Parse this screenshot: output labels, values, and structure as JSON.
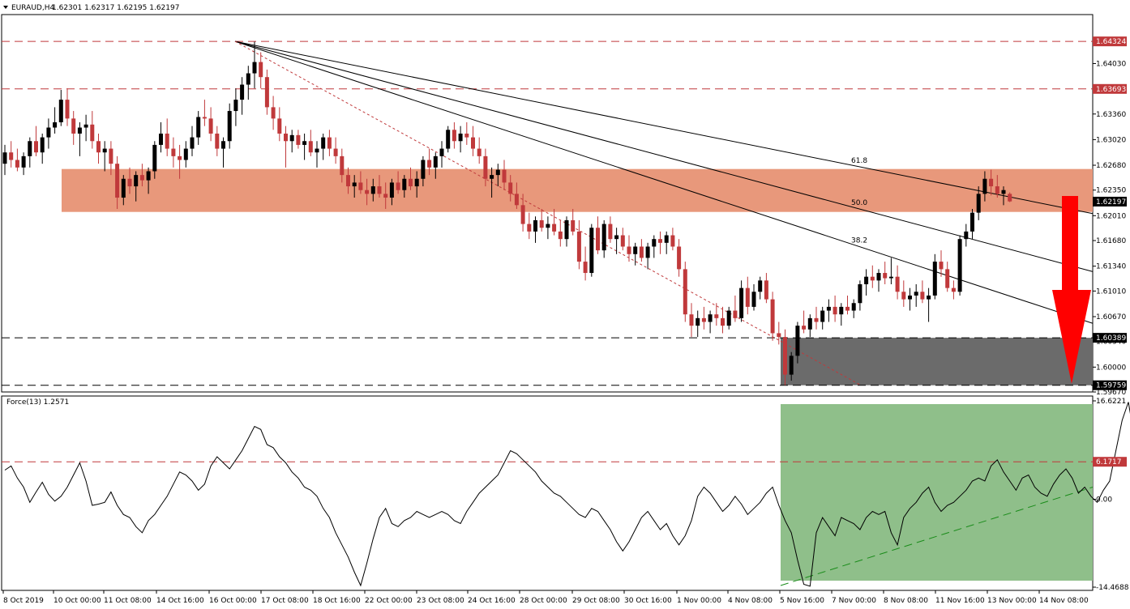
{
  "header": {
    "symbol": "EURAUD,H4",
    "ohlc": "1.62301 1.62317 1.62195 1.62197"
  },
  "indicator": {
    "label": "Force(13) 1.2571"
  },
  "colors": {
    "bull": "#000000",
    "bear": "#c0393b",
    "zone": "#e8987b",
    "grey_zone": "#6b6b6b",
    "green_zone": "#8fbf8a",
    "arrow": "#ff0000",
    "hline": "#c0393b"
  },
  "chart_data": [
    {
      "type": "candlestick",
      "title": "",
      "price_axis": {
        "ylim": [
          1.5967,
          1.6468
        ],
        "ticks": [
          "1.64030",
          "1.63360",
          "1.63020",
          "1.62680",
          "1.62350",
          "1.62010",
          "1.61680",
          "1.61340",
          "1.61010",
          "1.60670",
          "1.60340",
          "1.60000",
          "1.59670"
        ]
      },
      "x_labels": [
        "8 Oct 2019",
        "10 Oct 00:00",
        "11 Oct 08:00",
        "14 Oct 16:00",
        "16 Oct 00:00",
        "17 Oct 08:00",
        "18 Oct 16:00",
        "22 Oct 00:00",
        "23 Oct 08:00",
        "24 Oct 16:00",
        "28 Oct 00:00",
        "29 Oct 08:00",
        "30 Oct 16:00",
        "1 Nov 00:00",
        "4 Nov 08:00",
        "5 Nov 16:00",
        "7 Nov 00:00",
        "8 Nov 08:00",
        "11 Nov 16:00",
        "13 Nov 00:00",
        "14 Nov 08:00"
      ],
      "horizontal_levels": [
        {
          "value": 1.64324,
          "label": "1.64324",
          "style": "red-dash"
        },
        {
          "value": 1.63693,
          "label": "1.63693",
          "style": "red-dash"
        },
        {
          "value": 1.60389,
          "label": "1.60389",
          "style": "black-dash"
        },
        {
          "value": 1.59759,
          "label": "1.59759",
          "style": "black-dash"
        }
      ],
      "current_price": "1.62197",
      "resistance_zone": [
        1.6206,
        1.6263
      ],
      "support_zone": [
        1.59759,
        1.60389
      ],
      "fib_fan": {
        "origin_price": 1.64324,
        "levels": [
          {
            "label": "61.8",
            "at_price": 1.6266
          },
          {
            "label": "50.0",
            "at_price": 1.621
          },
          {
            "label": "38.2",
            "at_price": 1.616
          }
        ]
      },
      "trendline": {
        "from": 1.64324,
        "to": 1.59759,
        "style": "red-dot"
      },
      "candles": [
        [
          1.627,
          1.6295,
          1.6255,
          1.6285
        ],
        [
          1.6285,
          1.63,
          1.6265,
          1.6275
        ],
        [
          1.6275,
          1.629,
          1.626,
          1.6265
        ],
        [
          1.6265,
          1.6285,
          1.6255,
          1.628
        ],
        [
          1.628,
          1.6305,
          1.6265,
          1.63
        ],
        [
          1.63,
          1.632,
          1.628,
          1.6285
        ],
        [
          1.6285,
          1.631,
          1.627,
          1.6305
        ],
        [
          1.6305,
          1.633,
          1.629,
          1.6318
        ],
        [
          1.6318,
          1.6345,
          1.631,
          1.6325
        ],
        [
          1.6325,
          1.6368,
          1.632,
          1.6355
        ],
        [
          1.6355,
          1.637,
          1.632,
          1.633
        ],
        [
          1.633,
          1.634,
          1.6295,
          1.631
        ],
        [
          1.631,
          1.6325,
          1.628,
          1.6318
        ],
        [
          1.6318,
          1.6335,
          1.63,
          1.6322
        ],
        [
          1.6322,
          1.634,
          1.629,
          1.63
        ],
        [
          1.63,
          1.631,
          1.627,
          1.6285
        ],
        [
          1.6285,
          1.63,
          1.626,
          1.629
        ],
        [
          1.629,
          1.63,
          1.6255,
          1.627
        ],
        [
          1.627,
          1.628,
          1.621,
          1.6225
        ],
        [
          1.6225,
          1.6255,
          1.6215,
          1.625
        ],
        [
          1.625,
          1.6265,
          1.623,
          1.624
        ],
        [
          1.624,
          1.626,
          1.622,
          1.6255
        ],
        [
          1.6255,
          1.627,
          1.624,
          1.6248
        ],
        [
          1.6248,
          1.6265,
          1.623,
          1.626
        ],
        [
          1.626,
          1.63,
          1.625,
          1.6295
        ],
        [
          1.6295,
          1.6325,
          1.6285,
          1.631
        ],
        [
          1.631,
          1.633,
          1.628,
          1.629
        ],
        [
          1.629,
          1.6305,
          1.6265,
          1.628
        ],
        [
          1.628,
          1.6295,
          1.625,
          1.6275
        ],
        [
          1.6275,
          1.63,
          1.6265,
          1.629
        ],
        [
          1.629,
          1.632,
          1.628,
          1.6305
        ],
        [
          1.6305,
          1.634,
          1.6295,
          1.6332
        ],
        [
          1.6332,
          1.6355,
          1.632,
          1.633
        ],
        [
          1.633,
          1.6345,
          1.63,
          1.631
        ],
        [
          1.631,
          1.632,
          1.628,
          1.629
        ],
        [
          1.629,
          1.6305,
          1.6265,
          1.63
        ],
        [
          1.63,
          1.635,
          1.629,
          1.634
        ],
        [
          1.634,
          1.637,
          1.632,
          1.6355
        ],
        [
          1.6355,
          1.6385,
          1.6335,
          1.6375
        ],
        [
          1.6375,
          1.64,
          1.6355,
          1.639
        ],
        [
          1.639,
          1.6432,
          1.637,
          1.6405
        ],
        [
          1.6405,
          1.6418,
          1.637,
          1.6385
        ],
        [
          1.6385,
          1.6395,
          1.6335,
          1.6345
        ],
        [
          1.6345,
          1.636,
          1.6315,
          1.633
        ],
        [
          1.633,
          1.6345,
          1.63,
          1.631
        ],
        [
          1.631,
          1.632,
          1.6265,
          1.63
        ],
        [
          1.63,
          1.6315,
          1.6285,
          1.6308
        ],
        [
          1.6308,
          1.6315,
          1.629,
          1.6295
        ],
        [
          1.6295,
          1.631,
          1.6275,
          1.63
        ],
        [
          1.63,
          1.6315,
          1.628,
          1.6285
        ],
        [
          1.6285,
          1.63,
          1.6265,
          1.629
        ],
        [
          1.629,
          1.631,
          1.6275,
          1.6305
        ],
        [
          1.6305,
          1.6315,
          1.628,
          1.629
        ],
        [
          1.629,
          1.6305,
          1.627,
          1.628
        ],
        [
          1.628,
          1.629,
          1.6245,
          1.6255
        ],
        [
          1.6255,
          1.6265,
          1.623,
          1.624
        ],
        [
          1.624,
          1.6255,
          1.6225,
          1.6245
        ],
        [
          1.6245,
          1.626,
          1.623,
          1.6235
        ],
        [
          1.6235,
          1.625,
          1.6215,
          1.623
        ],
        [
          1.623,
          1.625,
          1.622,
          1.624
        ],
        [
          1.624,
          1.6255,
          1.6225,
          1.623
        ],
        [
          1.623,
          1.6245,
          1.621,
          1.6225
        ],
        [
          1.6225,
          1.625,
          1.6215,
          1.6245
        ],
        [
          1.6245,
          1.626,
          1.623,
          1.6235
        ],
        [
          1.6235,
          1.6255,
          1.6225,
          1.625
        ],
        [
          1.625,
          1.6265,
          1.6235,
          1.624
        ],
        [
          1.624,
          1.626,
          1.6225,
          1.625
        ],
        [
          1.625,
          1.628,
          1.624,
          1.6275
        ],
        [
          1.6275,
          1.629,
          1.6255,
          1.6265
        ],
        [
          1.6265,
          1.6285,
          1.625,
          1.628
        ],
        [
          1.628,
          1.63,
          1.6265,
          1.629
        ],
        [
          1.629,
          1.632,
          1.6285,
          1.6315
        ],
        [
          1.6315,
          1.6325,
          1.629,
          1.63
        ],
        [
          1.63,
          1.632,
          1.6285,
          1.631
        ],
        [
          1.631,
          1.6325,
          1.6295,
          1.6305
        ],
        [
          1.6305,
          1.632,
          1.628,
          1.629
        ],
        [
          1.629,
          1.6305,
          1.627,
          1.628
        ],
        [
          1.628,
          1.629,
          1.624,
          1.625
        ],
        [
          1.625,
          1.6265,
          1.6225,
          1.6255
        ],
        [
          1.6255,
          1.627,
          1.624,
          1.6262
        ],
        [
          1.6262,
          1.6275,
          1.6235,
          1.6245
        ],
        [
          1.6245,
          1.6255,
          1.622,
          1.623
        ],
        [
          1.623,
          1.6245,
          1.621,
          1.6215
        ],
        [
          1.6215,
          1.623,
          1.618,
          1.619
        ],
        [
          1.619,
          1.6205,
          1.617,
          1.618
        ],
        [
          1.618,
          1.62,
          1.6165,
          1.6195
        ],
        [
          1.6195,
          1.621,
          1.618,
          1.6185
        ],
        [
          1.6185,
          1.62,
          1.617,
          1.619
        ],
        [
          1.619,
          1.621,
          1.6175,
          1.618
        ],
        [
          1.618,
          1.6195,
          1.616,
          1.617
        ],
        [
          1.617,
          1.62,
          1.616,
          1.6195
        ],
        [
          1.6195,
          1.621,
          1.6175,
          1.618
        ],
        [
          1.618,
          1.6195,
          1.613,
          1.614
        ],
        [
          1.614,
          1.616,
          1.6115,
          1.6125
        ],
        [
          1.6125,
          1.619,
          1.612,
          1.6185
        ],
        [
          1.6185,
          1.62,
          1.615,
          1.6155
        ],
        [
          1.6155,
          1.6195,
          1.6145,
          1.619
        ],
        [
          1.619,
          1.62,
          1.6165,
          1.617
        ],
        [
          1.617,
          1.6185,
          1.615,
          1.6175
        ],
        [
          1.6175,
          1.6185,
          1.6155,
          1.616
        ],
        [
          1.616,
          1.6175,
          1.614,
          1.615
        ],
        [
          1.615,
          1.6165,
          1.6135,
          1.616
        ],
        [
          1.616,
          1.617,
          1.614,
          1.6145
        ],
        [
          1.6145,
          1.6165,
          1.613,
          1.616
        ],
        [
          1.616,
          1.6175,
          1.6145,
          1.617
        ],
        [
          1.617,
          1.618,
          1.615,
          1.6165
        ],
        [
          1.6165,
          1.618,
          1.615,
          1.6175
        ],
        [
          1.6175,
          1.6185,
          1.6155,
          1.616
        ],
        [
          1.616,
          1.617,
          1.612,
          1.613
        ],
        [
          1.613,
          1.614,
          1.606,
          1.607
        ],
        [
          1.607,
          1.6085,
          1.604,
          1.6055
        ],
        [
          1.6055,
          1.6075,
          1.604,
          1.6065
        ],
        [
          1.6065,
          1.608,
          1.605,
          1.606
        ],
        [
          1.606,
          1.6075,
          1.6045,
          1.607
        ],
        [
          1.607,
          1.6085,
          1.6055,
          1.6065
        ],
        [
          1.6065,
          1.608,
          1.6045,
          1.6055
        ],
        [
          1.6055,
          1.608,
          1.605,
          1.6075
        ],
        [
          1.6075,
          1.6095,
          1.606,
          1.6065
        ],
        [
          1.6065,
          1.6115,
          1.606,
          1.6105
        ],
        [
          1.6105,
          1.612,
          1.607,
          1.608
        ],
        [
          1.608,
          1.611,
          1.6075,
          1.61
        ],
        [
          1.61,
          1.612,
          1.609,
          1.6115
        ],
        [
          1.6115,
          1.6125,
          1.6085,
          1.609
        ],
        [
          1.609,
          1.61,
          1.6035,
          1.6045
        ],
        [
          1.6045,
          1.606,
          1.603,
          1.604
        ],
        [
          1.604,
          1.605,
          1.5976,
          1.599
        ],
        [
          1.599,
          1.602,
          1.5982,
          1.6015
        ],
        [
          1.6015,
          1.606,
          1.6005,
          1.6055
        ],
        [
          1.6055,
          1.6075,
          1.6045,
          1.605
        ],
        [
          1.605,
          1.607,
          1.604,
          1.6065
        ],
        [
          1.6065,
          1.608,
          1.605,
          1.606
        ],
        [
          1.606,
          1.608,
          1.605,
          1.6075
        ],
        [
          1.6075,
          1.609,
          1.606,
          1.608
        ],
        [
          1.608,
          1.6095,
          1.606,
          1.607
        ],
        [
          1.607,
          1.6085,
          1.6055,
          1.608
        ],
        [
          1.608,
          1.6095,
          1.607,
          1.6075
        ],
        [
          1.6075,
          1.609,
          1.6065,
          1.6085
        ],
        [
          1.6085,
          1.6115,
          1.6075,
          1.611
        ],
        [
          1.611,
          1.613,
          1.6095,
          1.612
        ],
        [
          1.612,
          1.6135,
          1.6105,
          1.6115
        ],
        [
          1.6115,
          1.613,
          1.61,
          1.6125
        ],
        [
          1.6125,
          1.614,
          1.611,
          1.6118
        ],
        [
          1.6118,
          1.6145,
          1.611,
          1.612
        ],
        [
          1.612,
          1.6135,
          1.609,
          1.61
        ],
        [
          1.61,
          1.6115,
          1.608,
          1.609
        ],
        [
          1.609,
          1.6105,
          1.6075,
          1.6095
        ],
        [
          1.6095,
          1.611,
          1.608,
          1.61
        ],
        [
          1.61,
          1.6115,
          1.6085,
          1.609
        ],
        [
          1.609,
          1.6105,
          1.606,
          1.6095
        ],
        [
          1.6095,
          1.615,
          1.609,
          1.614
        ],
        [
          1.614,
          1.6155,
          1.612,
          1.613
        ],
        [
          1.613,
          1.614,
          1.61,
          1.6105
        ],
        [
          1.6105,
          1.6115,
          1.609,
          1.61
        ],
        [
          1.61,
          1.6175,
          1.6095,
          1.617
        ],
        [
          1.617,
          1.619,
          1.616,
          1.618
        ],
        [
          1.618,
          1.621,
          1.617,
          1.6205
        ],
        [
          1.6205,
          1.624,
          1.6195,
          1.623
        ],
        [
          1.623,
          1.626,
          1.622,
          1.625
        ],
        [
          1.625,
          1.6262,
          1.6228,
          1.624
        ],
        [
          1.624,
          1.6255,
          1.6225,
          1.623
        ],
        [
          1.623,
          1.624,
          1.6215,
          1.6235
        ],
        [
          1.623,
          1.6232,
          1.6219,
          1.622
        ]
      ]
    },
    {
      "type": "line",
      "title": "Force(13) 1.2571",
      "y_axis": {
        "ylim": [
          -15.0,
          17.0
        ],
        "ticks": [
          "16.6221",
          "6.1717",
          "0.00",
          "-14.4688"
        ]
      },
      "levels": [
        {
          "value": 6.1717,
          "label": "6.1717"
        }
      ],
      "values": [
        4.8,
        5.5,
        3.5,
        2.0,
        -0.5,
        1.2,
        2.8,
        0.8,
        -0.3,
        0.5,
        2.0,
        4.0,
        6.0,
        3.0,
        -1.0,
        -0.8,
        -0.5,
        1.2,
        -1.0,
        -2.5,
        -3.0,
        -4.5,
        -5.5,
        -3.5,
        -2.5,
        -1.0,
        0.5,
        2.5,
        4.5,
        4.0,
        3.0,
        1.5,
        2.5,
        5.5,
        7.0,
        6.0,
        5.0,
        6.5,
        8.0,
        10.0,
        12.0,
        11.5,
        9.0,
        8.5,
        7.0,
        6.0,
        4.5,
        3.5,
        2.0,
        1.5,
        0.5,
        -1.5,
        -3.0,
        -5.5,
        -7.5,
        -9.5,
        -12.0,
        -14.2,
        -10.5,
        -6.5,
        -3.0,
        -1.5,
        -4.0,
        -4.5,
        -3.5,
        -3.0,
        -2.0,
        -2.5,
        -3.0,
        -2.5,
        -2.0,
        -2.5,
        -3.5,
        -4.0,
        -2.0,
        -0.5,
        1.0,
        2.0,
        3.0,
        4.0,
        6.0,
        8.0,
        7.5,
        6.5,
        5.5,
        4.5,
        3.0,
        2.0,
        1.0,
        0.5,
        -0.5,
        -1.5,
        -2.5,
        -3.0,
        -1.5,
        -2.0,
        -3.5,
        -5.0,
        -7.0,
        -8.5,
        -7.0,
        -5.0,
        -3.0,
        -2.0,
        -3.5,
        -5.0,
        -4.0,
        -6.0,
        -7.5,
        -6.0,
        -3.5,
        0.5,
        2.0,
        1.0,
        -0.5,
        -2.0,
        -1.0,
        0.5,
        -0.8,
        -2.5,
        -1.5,
        -0.5,
        1.0,
        2.0,
        -1.0,
        -3.5,
        -5.5,
        -10.0,
        -14.0,
        -14.3,
        -5.5,
        -3.0,
        -4.5,
        -6.0,
        -3.0,
        -3.5,
        -4.0,
        -5.0,
        -3.0,
        -2.0,
        -2.5,
        -2.0,
        -5.5,
        -7.5,
        -3.0,
        -1.5,
        -0.5,
        1.0,
        2.0,
        -0.5,
        -2.0,
        -1.0,
        -0.5,
        0.5,
        1.5,
        3.0,
        3.5,
        3.0,
        5.5,
        6.5,
        4.5,
        3.0,
        1.5,
        3.5,
        4.0,
        2.0,
        1.0,
        0.5,
        2.5,
        4.0,
        5.0,
        3.5,
        1.0,
        2.0,
        0.5,
        -0.5,
        1.5,
        3.0,
        8.0,
        13.0,
        16.0,
        10.0,
        8.0,
        6.5,
        4.5,
        1.2571
      ]
    }
  ]
}
